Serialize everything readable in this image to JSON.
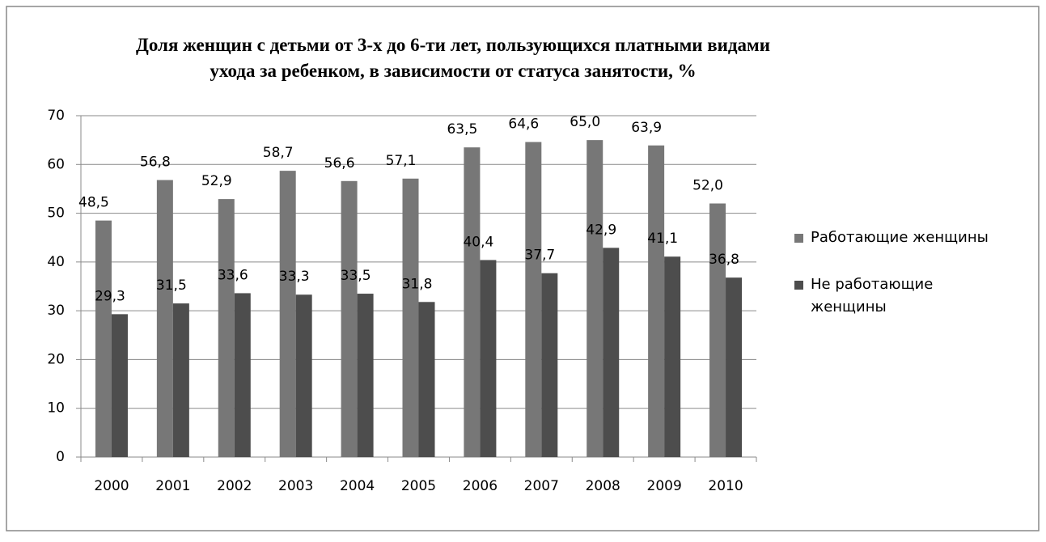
{
  "chart_data": {
    "type": "bar",
    "title": "Доля женщин с детьми от 3-х до 6-ти лет, пользующихся платными видами ухода за ребенком, в зависимости от статуса занятости, %",
    "categories": [
      "2000",
      "2001",
      "2002",
      "2003",
      "2004",
      "2005",
      "2006",
      "2007",
      "2008",
      "2009",
      "2010"
    ],
    "series": [
      {
        "name": "Работающие женщины",
        "color": "#777777",
        "values": [
          48.5,
          56.8,
          52.9,
          58.7,
          56.6,
          57.1,
          63.5,
          64.6,
          65.0,
          63.9,
          52.0
        ],
        "value_labels": [
          "48,5",
          "56,8",
          "52,9",
          "58,7",
          "56,6",
          "57,1",
          "63,5",
          "64,6",
          "65,0",
          "63,9",
          "52,0"
        ]
      },
      {
        "name": "Не работающие женщины",
        "color": "#4d4d4d",
        "values": [
          29.3,
          31.5,
          33.6,
          33.3,
          33.5,
          31.8,
          40.4,
          37.7,
          42.9,
          41.1,
          36.8
        ],
        "value_labels": [
          "29,3",
          "31,5",
          "33,6",
          "33,3",
          "33,5",
          "31,8",
          "40,4",
          "37,7",
          "42,9",
          "41,1",
          "36,8"
        ]
      }
    ],
    "ylim": [
      0,
      70
    ],
    "yticks": [
      0,
      10,
      20,
      30,
      40,
      50,
      60,
      70
    ],
    "grid": true,
    "legend": "right"
  }
}
